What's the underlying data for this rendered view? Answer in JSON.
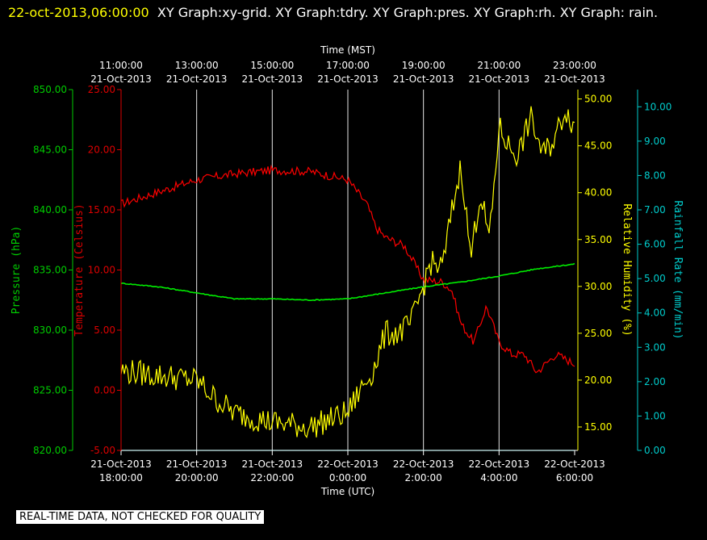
{
  "header": {
    "timestamp": "22-oct-2013,06:00:00",
    "graph_list": "XY Graph:xy-grid.  XY Graph:tdry.  XY Graph:pres.  XY Graph:rh.  XY Graph: rain."
  },
  "footer": {
    "quality_note": "REAL-TIME DATA, NOT CHECKED FOR QUALITY"
  },
  "chart_data": {
    "type": "line",
    "grid": true,
    "x_top_axis": {
      "label": "Time (MST)",
      "ticks": [
        {
          "time": "11:00:00",
          "date": "21-Oct-2013"
        },
        {
          "time": "13:00:00",
          "date": "21-Oct-2013"
        },
        {
          "time": "15:00:00",
          "date": "21-Oct-2013"
        },
        {
          "time": "17:00:00",
          "date": "21-Oct-2013"
        },
        {
          "time": "19:00:00",
          "date": "21-Oct-2013"
        },
        {
          "time": "21:00:00",
          "date": "21-Oct-2013"
        },
        {
          "time": "23:00:00",
          "date": "21-Oct-2013"
        }
      ]
    },
    "x_bottom_axis": {
      "label": "Time (UTC)",
      "range": [
        "21-Oct-2013 18:00:00",
        "22-Oct-2013 6:00:00"
      ],
      "ticks": [
        {
          "date": "21-Oct-2013",
          "time": "18:00:00"
        },
        {
          "date": "21-Oct-2013",
          "time": "20:00:00"
        },
        {
          "date": "21-Oct-2013",
          "time": "22:00:00"
        },
        {
          "date": "22-Oct-2013",
          "time": "0:00:00"
        },
        {
          "date": "22-Oct-2013",
          "time": "2:00:00"
        },
        {
          "date": "22-Oct-2013",
          "time": "4:00:00"
        },
        {
          "date": "22-Oct-2013",
          "time": "6:00:00"
        }
      ]
    },
    "y_axes": [
      {
        "id": "pres",
        "label": "Pressure (hPa)",
        "color": "#00cc00",
        "range": [
          820,
          850
        ],
        "ticks": [
          "820.00",
          "825.00",
          "830.00",
          "835.00",
          "840.00",
          "845.00",
          "850.00"
        ]
      },
      {
        "id": "tdry",
        "label": "Temperature (Celsius)",
        "color": "#dd0000",
        "range": [
          -5,
          25
        ],
        "ticks": [
          "-5.00",
          "0.00",
          "5.00",
          "10.00",
          "15.00",
          "20.00",
          "25.00"
        ]
      },
      {
        "id": "rh",
        "label": "Relative Humidity (%)",
        "color": "#ffff00",
        "range": [
          12.5,
          51
        ],
        "ticks": [
          "15.00",
          "20.00",
          "25.00",
          "30.00",
          "35.00",
          "40.00",
          "45.00",
          "50.00"
        ]
      },
      {
        "id": "rain",
        "label": "Rainfall Rate (mm/min)",
        "color": "#00cccc",
        "range": [
          0,
          10.5
        ],
        "ticks": [
          "0.00",
          "1.00",
          "2.00",
          "3.00",
          "4.00",
          "5.00",
          "6.00",
          "7.00",
          "8.00",
          "9.00",
          "10.00"
        ]
      }
    ],
    "series": [
      {
        "axis": "tdry",
        "color": "#ff0000",
        "x": [
          "21-Oct-2013 18:00",
          "21-Oct-2013 19:00",
          "21-Oct-2013 20:00",
          "21-Oct-2013 21:00",
          "21-Oct-2013 22:00",
          "21-Oct-2013 23:00",
          "22-Oct-2013 0:00",
          "22-Oct-2013 0:30",
          "22-Oct-2013 0:45",
          "22-Oct-2013 1:00",
          "22-Oct-2013 1:30",
          "22-Oct-2013 2:00",
          "22-Oct-2013 2:30",
          "22-Oct-2013 2:45",
          "22-Oct-2013 3:00",
          "22-Oct-2013 3:20",
          "22-Oct-2013 3:40",
          "22-Oct-2013 4:00",
          "22-Oct-2013 4:20",
          "22-Oct-2013 4:40",
          "22-Oct-2013 5:00",
          "22-Oct-2013 5:30",
          "22-Oct-2013 6:00"
        ],
        "values": [
          15.5,
          16.5,
          17.5,
          18.0,
          18.3,
          18.2,
          17.5,
          15.5,
          13.5,
          12.7,
          12.0,
          9.2,
          9.0,
          8.3,
          5.5,
          4.0,
          7.0,
          4.0,
          3.0,
          3.0,
          1.5,
          3.0,
          2.2
        ]
      },
      {
        "axis": "pres",
        "color": "#00ee00",
        "x": [
          "21-Oct-2013 18:00",
          "21-Oct-2013 19:00",
          "21-Oct-2013 20:00",
          "21-Oct-2013 21:00",
          "21-Oct-2013 22:00",
          "21-Oct-2013 23:00",
          "22-Oct-2013 0:00",
          "22-Oct-2013 1:00",
          "22-Oct-2013 2:00",
          "22-Oct-2013 3:00",
          "22-Oct-2013 4:00",
          "22-Oct-2013 5:00",
          "22-Oct-2013 6:00"
        ],
        "values": [
          833.9,
          833.6,
          833.1,
          832.6,
          832.6,
          832.5,
          832.6,
          833.1,
          833.6,
          834.0,
          834.5,
          835.1,
          835.5
        ]
      },
      {
        "axis": "rh",
        "color": "#ffff00",
        "x": [
          "21-Oct-2013 18:00",
          "21-Oct-2013 19:00",
          "21-Oct-2013 20:00",
          "21-Oct-2013 20:30",
          "21-Oct-2013 21:00",
          "21-Oct-2013 22:00",
          "21-Oct-2013 23:00",
          "22-Oct-2013 0:00",
          "22-Oct-2013 0:20",
          "22-Oct-2013 0:40",
          "22-Oct-2013 1:00",
          "22-Oct-2013 1:20",
          "22-Oct-2013 1:40",
          "22-Oct-2013 2:00",
          "22-Oct-2013 2:10",
          "22-Oct-2013 2:30",
          "22-Oct-2013 2:45",
          "22-Oct-2013 3:00",
          "22-Oct-2013 3:15",
          "22-Oct-2013 3:30",
          "22-Oct-2013 3:45",
          "22-Oct-2013 4:00",
          "22-Oct-2013 4:15",
          "22-Oct-2013 4:30",
          "22-Oct-2013 4:50",
          "22-Oct-2013 5:10",
          "22-Oct-2013 5:30",
          "22-Oct-2013 5:45",
          "22-Oct-2013 6:00"
        ],
        "values": [
          21.0,
          20.5,
          20.0,
          18.0,
          16.5,
          15.5,
          15.0,
          16.5,
          19.0,
          21.0,
          25.0,
          25.0,
          26.0,
          30.0,
          32.5,
          32.0,
          38.0,
          43.0,
          33.0,
          40.0,
          35.0,
          47.0,
          45.0,
          44.0,
          48.0,
          44.0,
          46.0,
          49.0,
          47.0
        ]
      },
      {
        "axis": "rain",
        "color": "#00cccc",
        "x": [
          "21-Oct-2013 18:00",
          "22-Oct-2013 6:00"
        ],
        "values": [
          0,
          0
        ]
      }
    ]
  }
}
